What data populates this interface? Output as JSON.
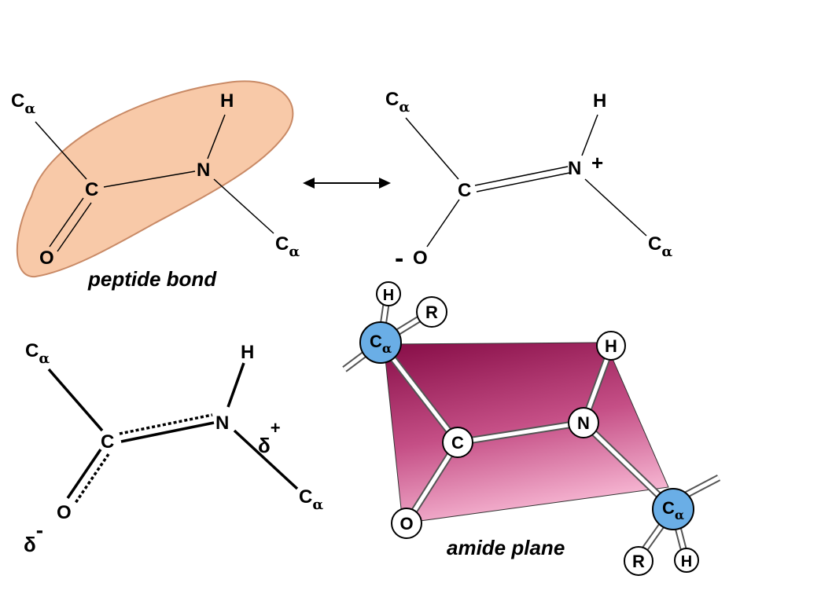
{
  "figure": {
    "captions": {
      "peptide_bond": "peptide bond",
      "amide_plane": "amide plane"
    },
    "atoms": {
      "C": "C",
      "N": "N",
      "O": "O",
      "H": "H",
      "R": "R",
      "alpha": "α",
      "delta": "δ",
      "plus": "+",
      "minus": "-"
    },
    "colors": {
      "peptide_region": "#f8c9a8",
      "peptide_region_edge": "#c98a66",
      "plane_dark": "#8a0e4a",
      "plane_light": "#f2a8c8",
      "alpha_carbon": "#6aaee6"
    }
  }
}
